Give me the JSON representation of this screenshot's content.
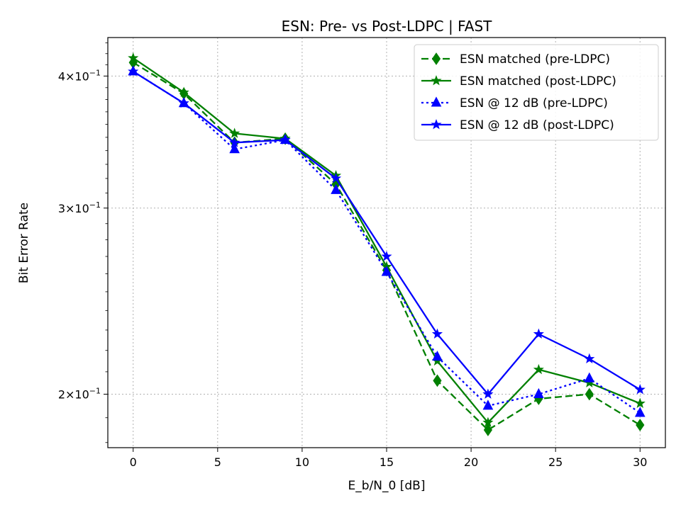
{
  "chart_data": {
    "type": "line",
    "title": "ESN: Pre- vs Post-LDPC | FAST",
    "xlabel": "E_b/N_0 [dB]",
    "ylabel": "Bit Error Rate",
    "x": [
      0,
      3,
      6,
      9,
      12,
      15,
      18,
      21,
      24,
      27,
      30
    ],
    "xlim": [
      -1.5,
      31.5
    ],
    "ylim": [
      0.178,
      0.435
    ],
    "yscale": "log",
    "xticks": [
      0,
      5,
      10,
      15,
      20,
      25,
      30
    ],
    "yticks": [
      {
        "value": 0.4,
        "mantissa": "4",
        "exponent": "−1"
      },
      {
        "value": 0.3,
        "mantissa": "3",
        "exponent": "−1"
      },
      {
        "value": 0.2,
        "mantissa": "2",
        "exponent": "−1"
      }
    ],
    "grid": true,
    "legend_position": "top-right",
    "series": [
      {
        "name": "ESN matched (pre-LDPC)",
        "color": "#008000",
        "dash": "dashed",
        "marker": "diamond",
        "values": [
          0.412,
          0.385,
          0.346,
          0.349,
          0.316,
          0.262,
          0.206,
          0.185,
          0.198,
          0.2,
          0.187
        ]
      },
      {
        "name": "ESN matched (post-LDPC)",
        "color": "#008000",
        "dash": "solid",
        "marker": "star",
        "values": [
          0.416,
          0.386,
          0.353,
          0.349,
          0.322,
          0.264,
          0.215,
          0.188,
          0.211,
          0.205,
          0.196
        ]
      },
      {
        "name": "ESN @ 12 dB (pre-LDPC)",
        "color": "#0000ff",
        "dash": "dotted",
        "marker": "triangle",
        "values": [
          0.404,
          0.377,
          0.341,
          0.348,
          0.312,
          0.261,
          0.217,
          0.195,
          0.2,
          0.207,
          0.192
        ]
      },
      {
        "name": "ESN @ 12 dB (post-LDPC)",
        "color": "#0000ff",
        "dash": "solid",
        "marker": "star",
        "values": [
          0.404,
          0.377,
          0.346,
          0.348,
          0.32,
          0.27,
          0.228,
          0.2,
          0.228,
          0.216,
          0.202
        ]
      }
    ]
  }
}
